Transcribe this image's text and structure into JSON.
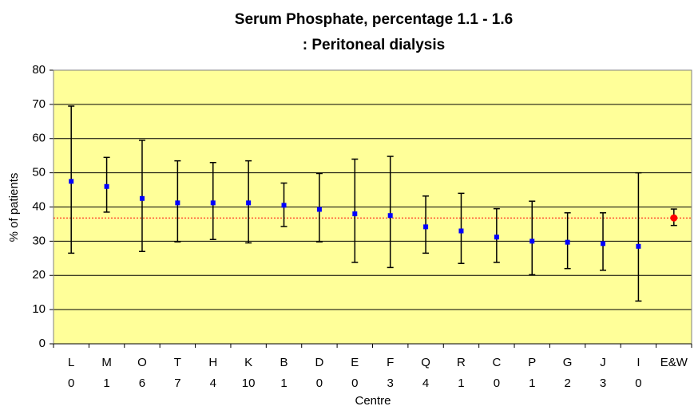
{
  "chart_data": {
    "type": "errorbar",
    "title": [
      "Serum Phosphate, percentage 1.1 - 1.6",
      ": Peritoneal dialysis"
    ],
    "x_label": "Centre",
    "y_label": "% of patients",
    "categories": [
      "L",
      "M",
      "O",
      "T",
      "H",
      "K",
      "B",
      "D",
      "E",
      "F",
      "Q",
      "R",
      "C",
      "P",
      "G",
      "J",
      "I",
      "E&W"
    ],
    "sublabels": [
      "0",
      "1",
      "6",
      "7",
      "4",
      "10",
      "1",
      "0",
      "0",
      "3",
      "4",
      "1",
      "0",
      "1",
      "2",
      "3",
      "0",
      null
    ],
    "values": [
      47.5,
      46,
      42.5,
      41.2,
      41.2,
      41.2,
      40.5,
      39.3,
      38,
      37.5,
      34.2,
      33,
      31.2,
      30,
      29.7,
      29.3,
      28.5,
      36.8
    ],
    "lower": [
      26.5,
      38.5,
      27,
      29.8,
      30.5,
      29.5,
      34.3,
      29.8,
      23.8,
      22.3,
      26.5,
      23.5,
      23.8,
      20.2,
      22,
      21.5,
      12.5,
      34.6
    ],
    "upper": [
      69.5,
      54.5,
      59.5,
      53.5,
      53,
      53.5,
      47,
      49.8,
      54,
      54.8,
      43.2,
      44,
      39.5,
      41.7,
      38.3,
      38.3,
      50,
      39.4
    ],
    "point_colors": [
      "#0000ff",
      "#0000ff",
      "#0000ff",
      "#0000ff",
      "#0000ff",
      "#0000ff",
      "#0000ff",
      "#0000ff",
      "#0000ff",
      "#0000ff",
      "#0000ff",
      "#0000ff",
      "#0000ff",
      "#0000ff",
      "#0000ff",
      "#0000ff",
      "#0000ff",
      "#ff0000"
    ],
    "reference_line": 36.8,
    "reference_color": "#ff0000",
    "ylim": [
      0,
      80
    ],
    "yticks": [
      0,
      10,
      20,
      30,
      40,
      50,
      60,
      70,
      80
    ],
    "grid": true,
    "background": "#ffff99"
  }
}
